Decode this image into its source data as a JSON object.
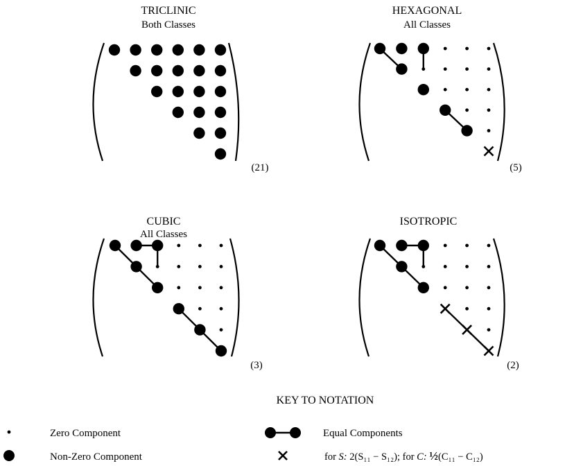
{
  "panels": [
    {
      "title": "TRICLINIC",
      "subtitle": "Both Classes",
      "count": "(21)",
      "cells": [
        "LLLLLL",
        "LLLLL",
        "LLLL",
        "LLL",
        "LL",
        "L"
      ],
      "links": []
    },
    {
      "title": "HEXAGONAL",
      "subtitle": "All Classes",
      "count": "(5)",
      "cells": [
        "LLLsss",
        "Lssss",
        "Lsss",
        "Lss",
        "Ls",
        "X"
      ],
      "links": [
        [
          0,
          0,
          1,
          1
        ],
        [
          0,
          2,
          1,
          2
        ],
        [
          3,
          3,
          4,
          4
        ]
      ]
    },
    {
      "title": "CUBIC",
      "subtitle": "All Classes",
      "count": "(3)",
      "cells": [
        "LLLsss",
        "Lssss",
        "Lsss",
        "Lss",
        "Ls",
        "L"
      ],
      "links": [
        [
          0,
          1,
          0,
          2
        ],
        [
          0,
          2,
          1,
          2
        ],
        [
          0,
          0,
          2,
          2
        ],
        [
          3,
          3,
          5,
          5
        ]
      ]
    },
    {
      "title": "ISOTROPIC",
      "subtitle": "",
      "count": "(2)",
      "cells": [
        "LLLsss",
        "Lssss",
        "Lsss",
        "Xss",
        "Xs",
        "X"
      ],
      "links": [
        [
          0,
          1,
          0,
          2
        ],
        [
          0,
          2,
          1,
          2
        ],
        [
          0,
          0,
          2,
          2
        ],
        [
          3,
          3,
          5,
          5
        ]
      ]
    }
  ],
  "key": {
    "heading": "KEY TO NOTATION",
    "zero": "Zero Component",
    "nonzero": "Non-Zero Component",
    "equal": "Equal Components",
    "x_prefix_s": "for",
    "s_var": "S:",
    "s_expr": "2(S₁₁ − S₁₂);",
    "x_prefix_c": "for",
    "c_var": "C:",
    "c_half": "½",
    "c_expr": "(C₁₁ − C₁₂)"
  }
}
